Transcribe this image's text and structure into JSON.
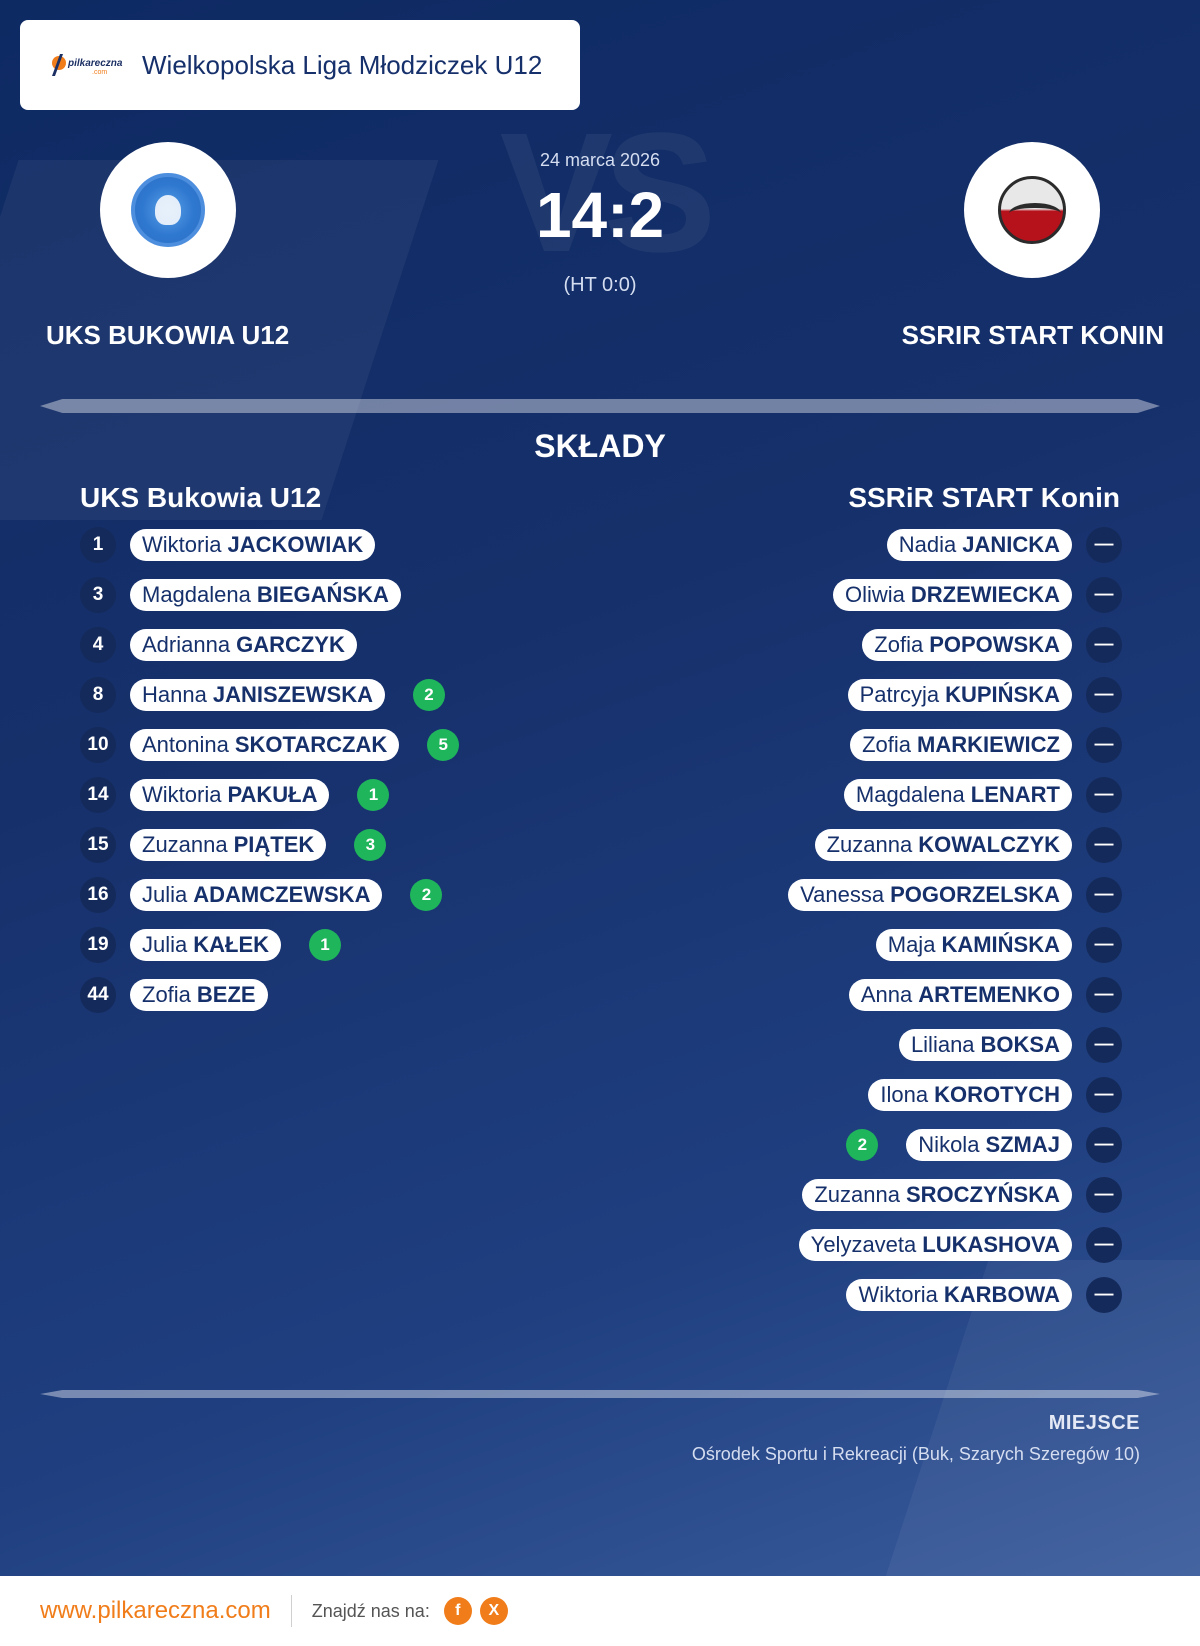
{
  "header": {
    "logo_text": "pilkareczna",
    "logo_sub": ".com",
    "league": "Wielkopolska Liga Młodziczek U12"
  },
  "match": {
    "date": "24 marca 2026",
    "score": "14:2",
    "halftime": "(HT 0:0)",
    "vs_text": "VS",
    "home_name": "UKS BUKOWIA U12",
    "away_name": "SSRIR START KONIN"
  },
  "lineups": {
    "title": "SKŁADY",
    "home_title": "UKS Bukowia U12",
    "away_title": "SSRiR START Konin",
    "home_players": [
      {
        "number": "1",
        "first": "Wiktoria",
        "last": "JACKOWIAK",
        "goals": ""
      },
      {
        "number": "3",
        "first": "Magdalena",
        "last": "BIEGAŃSKA",
        "goals": ""
      },
      {
        "number": "4",
        "first": "Adrianna",
        "last": "GARCZYK",
        "goals": ""
      },
      {
        "number": "8",
        "first": "Hanna",
        "last": "JANISZEWSKA",
        "goals": "2"
      },
      {
        "number": "10",
        "first": "Antonina",
        "last": "SKOTARCZAK",
        "goals": "5"
      },
      {
        "number": "14",
        "first": "Wiktoria",
        "last": "PAKUŁA",
        "goals": "1"
      },
      {
        "number": "15",
        "first": "Zuzanna",
        "last": "PIĄTEK",
        "goals": "3"
      },
      {
        "number": "16",
        "first": "Julia",
        "last": "ADAMCZEWSKA",
        "goals": "2"
      },
      {
        "number": "19",
        "first": "Julia",
        "last": "KAŁEK",
        "goals": "1"
      },
      {
        "number": "44",
        "first": "Zofia",
        "last": "BEZE",
        "goals": ""
      }
    ],
    "away_players": [
      {
        "number": "—",
        "first": "Nadia",
        "last": "JANICKA",
        "goals": ""
      },
      {
        "number": "—",
        "first": "Oliwia",
        "last": "DRZEWIECKA",
        "goals": ""
      },
      {
        "number": "—",
        "first": "Zofia",
        "last": "POPOWSKA",
        "goals": ""
      },
      {
        "number": "—",
        "first": "Patrcyja",
        "last": "KUPIŃSKA",
        "goals": ""
      },
      {
        "number": "—",
        "first": "Zofia",
        "last": "MARKIEWICZ",
        "goals": ""
      },
      {
        "number": "—",
        "first": "Magdalena",
        "last": "LENART",
        "goals": ""
      },
      {
        "number": "—",
        "first": "Zuzanna",
        "last": "KOWALCZYK",
        "goals": ""
      },
      {
        "number": "—",
        "first": "Vanessa",
        "last": "POGORZELSKA",
        "goals": ""
      },
      {
        "number": "—",
        "first": "Maja",
        "last": "KAMIŃSKA",
        "goals": ""
      },
      {
        "number": "—",
        "first": "Anna",
        "last": "ARTEMENKO",
        "goals": ""
      },
      {
        "number": "—",
        "first": "Liliana",
        "last": "BOKSA",
        "goals": ""
      },
      {
        "number": "—",
        "first": "Ilona",
        "last": "KOROTYCH",
        "goals": ""
      },
      {
        "number": "—",
        "first": "Nikola",
        "last": "SZMAJ",
        "goals": "2"
      },
      {
        "number": "—",
        "first": "Zuzanna",
        "last": "SROCZYŃSKA",
        "goals": ""
      },
      {
        "number": "—",
        "first": "Yelyzaveta",
        "last": "LUKASHOVA",
        "goals": ""
      },
      {
        "number": "—",
        "first": "Wiktoria",
        "last": "KARBOWA",
        "goals": ""
      }
    ]
  },
  "venue": {
    "label": "MIEJSCE",
    "text": "Ośrodek Sportu i Rekreacji (Buk, Szarych Szeregów 10)"
  },
  "footer": {
    "url": "www.pilkareczna.com",
    "find_us": "Znajdź nas na:",
    "facebook": "f",
    "x": "X"
  },
  "colors": {
    "background": "#16306b",
    "accent": "#f07d1a",
    "goal_badge": "#1fb55b"
  }
}
